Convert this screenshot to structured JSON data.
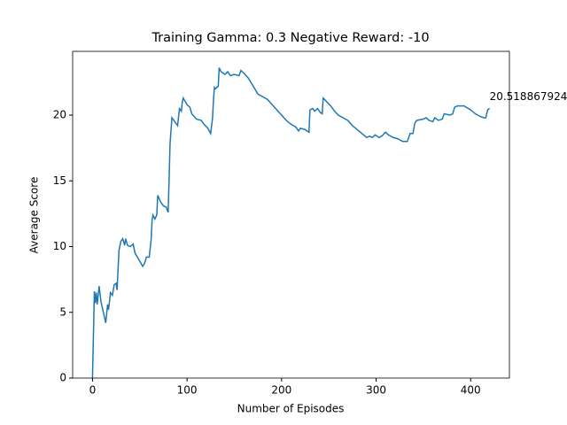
{
  "chart_data": {
    "type": "line",
    "title": "Training Gamma: 0.3 Negative Reward: -10",
    "x_label": "Number of Episodes",
    "y_label": "Average Score",
    "x": [
      0,
      2,
      3,
      4,
      5,
      7,
      9,
      14,
      16,
      17,
      19,
      21,
      23,
      25,
      26,
      28,
      30,
      32,
      34,
      35,
      37,
      40,
      43,
      45,
      50,
      53,
      55,
      57,
      60,
      62,
      63,
      64,
      66,
      68,
      69,
      72,
      75,
      78,
      80,
      81,
      82,
      84,
      87,
      90,
      92,
      94,
      95,
      96,
      100,
      103,
      105,
      110,
      115,
      118,
      122,
      125,
      127,
      128,
      129,
      130,
      133,
      134,
      136,
      140,
      143,
      146,
      150,
      155,
      157,
      160,
      165,
      170,
      175,
      180,
      185,
      190,
      195,
      200,
      205,
      210,
      215,
      218,
      220,
      225,
      229,
      230,
      233,
      235,
      238,
      241,
      243,
      244,
      248,
      252,
      256,
      260,
      265,
      270,
      275,
      280,
      285,
      290,
      293,
      296,
      299,
      303,
      306,
      310,
      313,
      318,
      323,
      328,
      333,
      336,
      339,
      341,
      343,
      350,
      353,
      356,
      360,
      362,
      366,
      370,
      372,
      378,
      381,
      383,
      386,
      393,
      400,
      405,
      410,
      414,
      416,
      418,
      420
    ],
    "series": [
      {
        "color": "#1f77b4",
        "values": [
          0,
          6.6,
          5.7,
          6.5,
          5.6,
          7.0,
          5.8,
          4.2,
          5.6,
          5.2,
          6.5,
          6.3,
          7.1,
          7.2,
          6.7,
          9.7,
          10.4,
          10.6,
          10.1,
          10.6,
          10.1,
          10.0,
          10.2,
          9.5,
          8.9,
          8.5,
          8.7,
          9.2,
          9.2,
          10.5,
          12.0,
          12.4,
          12.1,
          12.4,
          13.9,
          13.4,
          13.1,
          13.0,
          12.6,
          15.0,
          17.8,
          19.8,
          19.5,
          19.2,
          20.5,
          20.3,
          21.0,
          21.3,
          20.8,
          20.6,
          20.1,
          19.7,
          19.6,
          19.3,
          19.0,
          18.6,
          19.8,
          21.2,
          22.1,
          22.0,
          22.2,
          23.6,
          23.3,
          23.1,
          23.3,
          23.0,
          23.1,
          23.0,
          23.4,
          23.2,
          22.8,
          22.2,
          21.6,
          21.4,
          21.2,
          20.8,
          20.4,
          20.0,
          19.6,
          19.3,
          19.1,
          18.8,
          19.0,
          18.9,
          18.7,
          20.4,
          20.5,
          20.3,
          20.5,
          20.2,
          20.1,
          21.3,
          21.0,
          20.7,
          20.3,
          20.0,
          19.8,
          19.6,
          19.2,
          18.9,
          18.6,
          18.3,
          18.4,
          18.3,
          18.5,
          18.3,
          18.4,
          18.7,
          18.5,
          18.3,
          18.2,
          18.0,
          18.0,
          18.6,
          18.6,
          19.4,
          19.6,
          19.7,
          19.8,
          19.6,
          19.5,
          19.8,
          19.6,
          19.7,
          20.1,
          20.0,
          20.1,
          20.6,
          20.7,
          20.7,
          20.4,
          20.1,
          19.9,
          19.8,
          19.8,
          20.4,
          20.5188679245283
        ]
      }
    ],
    "annotation": "20.518867924528302",
    "xlim": [
      -21,
      441
    ],
    "xticks": [
      0,
      100,
      200,
      300,
      400
    ],
    "ylim": [
      0,
      24.85
    ],
    "yticks": [
      0,
      5,
      10,
      15,
      20
    ]
  }
}
